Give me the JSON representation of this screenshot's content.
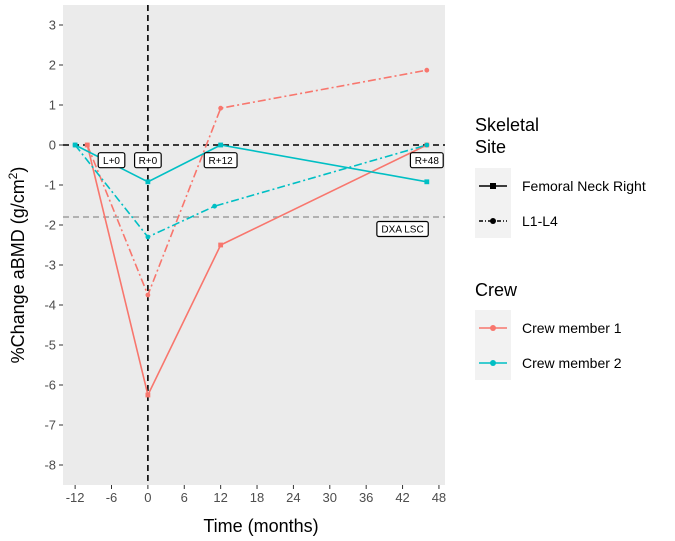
{
  "chart_data": {
    "type": "line",
    "xlabel": "Time (months)",
    "ylabel_main": "%Change aBMD (g/cm",
    "ylabel_sup": "2",
    "ylabel_close": ")",
    "xlim": [
      -14,
      49
    ],
    "ylim": [
      -8.5,
      3.5
    ],
    "x_ticks": [
      -12,
      -6,
      0,
      6,
      12,
      18,
      24,
      30,
      36,
      42,
      48
    ],
    "x_tick_labels": [
      "-12",
      "-6",
      "0",
      "6",
      "12",
      "18",
      "24",
      "30",
      "36",
      "42",
      "48"
    ],
    "y_ticks": [
      3,
      2,
      1,
      0,
      -1,
      -2,
      -3,
      -4,
      -5,
      -6,
      -7,
      -8
    ],
    "y_tick_labels": [
      "3",
      "2",
      "1",
      "0",
      "-1",
      "-2",
      "-3",
      "-4",
      "-5",
      "-6",
      "-7",
      "-8"
    ],
    "reference_lines": {
      "hline_zero": 0,
      "vline_zero": 0,
      "lsc_value": -1.8
    },
    "annotations": [
      {
        "text": "L+0",
        "x": -6,
        "y": -0.38
      },
      {
        "text": "R+0",
        "x": 0,
        "y": -0.38
      },
      {
        "text": "R+12",
        "x": 12,
        "y": -0.38
      },
      {
        "text": "R+48",
        "x": 46,
        "y": -0.38
      },
      {
        "text": "DXA LSC",
        "x": 42,
        "y": -2.1
      }
    ],
    "series": [
      {
        "name": "Crew member 1",
        "site": "Femoral Neck Right",
        "color": "#F8766D",
        "dash": "solid",
        "x": [
          -10,
          0,
          12,
          46
        ],
        "y": [
          0,
          -6.25,
          -2.5,
          0
        ]
      },
      {
        "name": "Crew member 1",
        "site": "L1-L4",
        "color": "#F8766D",
        "dash": "dotdash",
        "x": [
          -10,
          0,
          12,
          46
        ],
        "y": [
          0,
          -3.75,
          0.92,
          1.87
        ]
      },
      {
        "name": "Crew member 2",
        "site": "Femoral Neck Right",
        "color": "#00BFC4",
        "dash": "solid",
        "x": [
          -12,
          0,
          12,
          46
        ],
        "y": [
          0,
          -0.92,
          0,
          -0.92
        ]
      },
      {
        "name": "Crew member 2",
        "site": "L1-L4",
        "color": "#00BFC4",
        "dash": "dotdash",
        "x": [
          -12,
          0,
          11,
          46
        ],
        "y": [
          0,
          -2.3,
          -1.53,
          0
        ]
      }
    ],
    "legend": {
      "site_title_line1": "Skeletal",
      "site_title_line2": "Site",
      "site_items": [
        "Femoral Neck Right",
        "L1-L4"
      ],
      "crew_title": "Crew",
      "crew_items": [
        {
          "label": "Crew member 1",
          "color": "#F8766D"
        },
        {
          "label": "Crew member 2",
          "color": "#00BFC4"
        }
      ]
    },
    "panel_color": "#EBEBEB",
    "grid": false
  }
}
